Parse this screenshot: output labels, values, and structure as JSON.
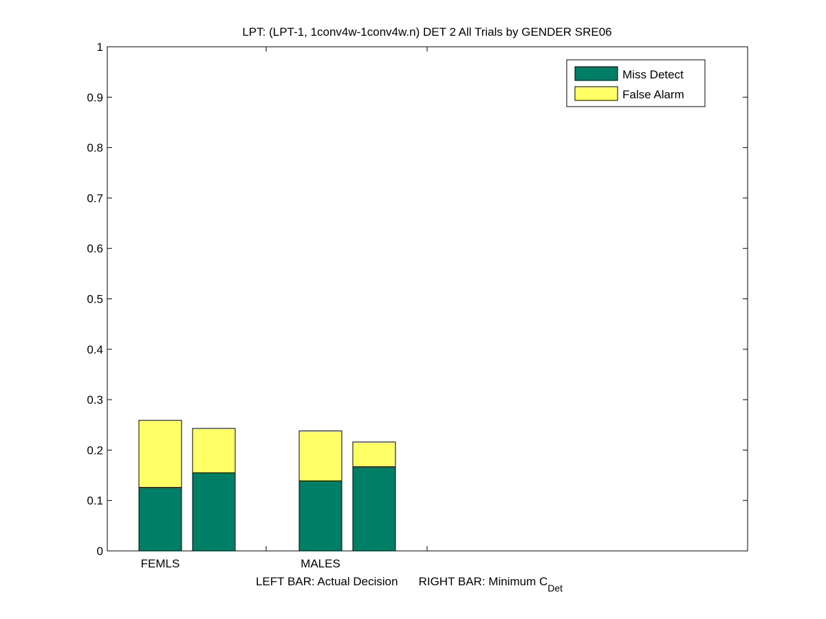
{
  "chart_data": {
    "type": "bar",
    "stacked": true,
    "title": "LPT: (LPT-1, 1conv4w-1conv4w.n) DET 2 All Trials by GENDER SRE06",
    "xlabel": {
      "left": "LEFT BAR: Actual Decision",
      "right": "RIGHT BAR: Minimum C",
      "right_sub": "Det"
    },
    "ylim": [
      0,
      1
    ],
    "yticks": [
      "0",
      "0.1",
      "0.2",
      "0.3",
      "0.4",
      "0.5",
      "0.6",
      "0.7",
      "0.8",
      "0.9",
      "1"
    ],
    "grid": false,
    "legend_position": "top-right",
    "categories": [
      "FEMLS",
      "MALES"
    ],
    "bars_per_category": [
      "Actual Decision",
      "Minimum CDet"
    ],
    "series": [
      {
        "name": "Miss Detect",
        "color": "#007f66",
        "values": [
          [
            0.126,
            0.155
          ],
          [
            0.139,
            0.167
          ]
        ]
      },
      {
        "name": "False Alarm",
        "color": "#ffff66",
        "values": [
          [
            0.133,
            0.088
          ],
          [
            0.099,
            0.049
          ]
        ]
      }
    ]
  }
}
